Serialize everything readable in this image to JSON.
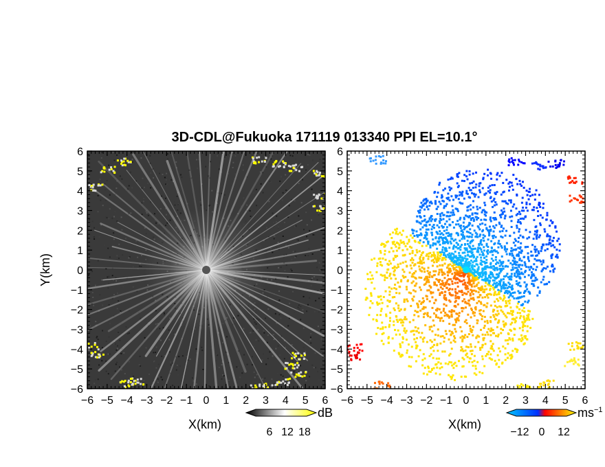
{
  "title": "3D-CDL@Fukuoka 171119 013340 PPI EL=10.1°",
  "chart_data": [
    {
      "type": "heatmap",
      "panel": "left",
      "quantity": "dB",
      "xlabel": "X(km)",
      "ylabel": "Y(km)",
      "xlim": [
        -6,
        6
      ],
      "ylim": [
        -6,
        6
      ],
      "xticks": [
        "−6",
        "−5",
        "−4",
        "−3",
        "−2",
        "−1",
        "0",
        "1",
        "2",
        "3",
        "4",
        "5",
        "6"
      ],
      "yticks": [
        "−6",
        "−5",
        "−4",
        "−3",
        "−2",
        "−1",
        "0",
        "1",
        "2",
        "3",
        "4",
        "5",
        "6"
      ],
      "colorbar": {
        "unit": "dB",
        "ticks": [
          "6",
          "12",
          "18"
        ],
        "colors": [
          "#000000",
          "#ffffff",
          "#ffff00"
        ]
      },
      "colors": {
        "background": "#3a3a3a",
        "rays": "#e6e6e6",
        "edge_highlight": "#ffff00"
      }
    },
    {
      "type": "heatmap",
      "panel": "right",
      "quantity": "Doppler velocity",
      "xlabel": "X(km)",
      "ylabel": "",
      "xlim": [
        -6,
        6
      ],
      "ylim": [
        -6,
        6
      ],
      "xticks": [
        "−6",
        "−5",
        "−4",
        "−3",
        "−2",
        "−1",
        "0",
        "1",
        "2",
        "3",
        "4",
        "5",
        "6"
      ],
      "colorbar": {
        "unit": "ms",
        "unit_exponent": "−1",
        "ticks": [
          "−12",
          "0",
          "12"
        ],
        "colors": [
          "#0000ff",
          "#00c8ff",
          "#ff0000",
          "#ffff00"
        ]
      },
      "colors": {
        "negative": "#1a7cff",
        "positive": "#ff9900",
        "missing": "#ffffff"
      }
    }
  ]
}
